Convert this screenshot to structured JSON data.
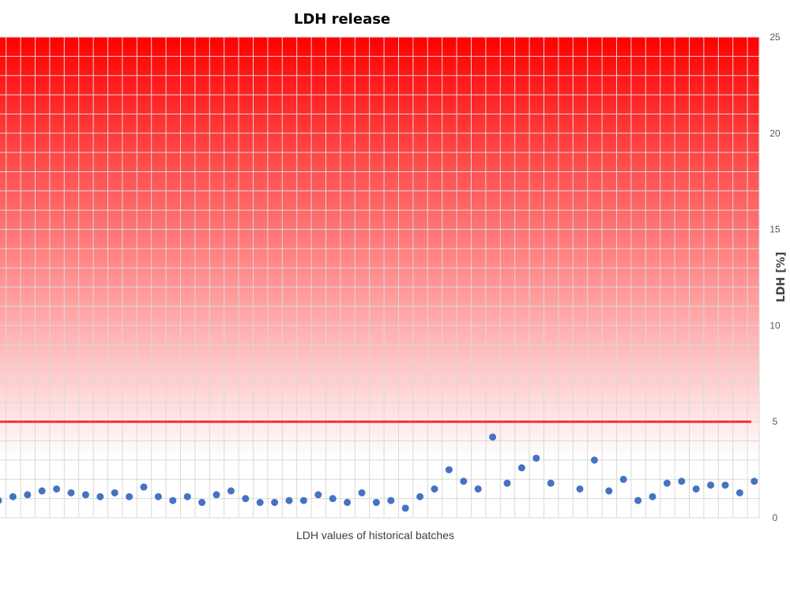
{
  "chart_data": {
    "type": "scatter",
    "title": "LDH release",
    "xlabel": "LDH values of historical batches",
    "ylabel": "LDH [%]",
    "ylim": [
      0,
      25
    ],
    "yticks": [
      "0",
      "5",
      "10",
      "15",
      "20",
      "25"
    ],
    "y_axis_side": "right",
    "grid": true,
    "limit_line": {
      "value": 5,
      "color": "#ee3333"
    },
    "gradient": {
      "top_color": "#ff0000",
      "bottom_color": "#ffffff"
    },
    "marker_color": "#4472c4",
    "series": [
      {
        "values": [
          0.9,
          1.1,
          1.2,
          1.4,
          1.5,
          1.3,
          1.2,
          1.1,
          1.3,
          1.1,
          1.6,
          1.1,
          0.9,
          1.1,
          0.8,
          1.2,
          1.4,
          1.0,
          0.8,
          0.8,
          0.9,
          0.9,
          1.2,
          1.0,
          0.8,
          1.3,
          0.8,
          0.9,
          0.5,
          1.1,
          1.5,
          2.5,
          1.9,
          1.5,
          4.2,
          1.8,
          2.6,
          3.1,
          1.8,
          null,
          1.5,
          3.0,
          1.4,
          2.0,
          0.9,
          1.1,
          1.8,
          1.9,
          1.5,
          1.7,
          1.7,
          1.3,
          1.9
        ]
      }
    ]
  }
}
